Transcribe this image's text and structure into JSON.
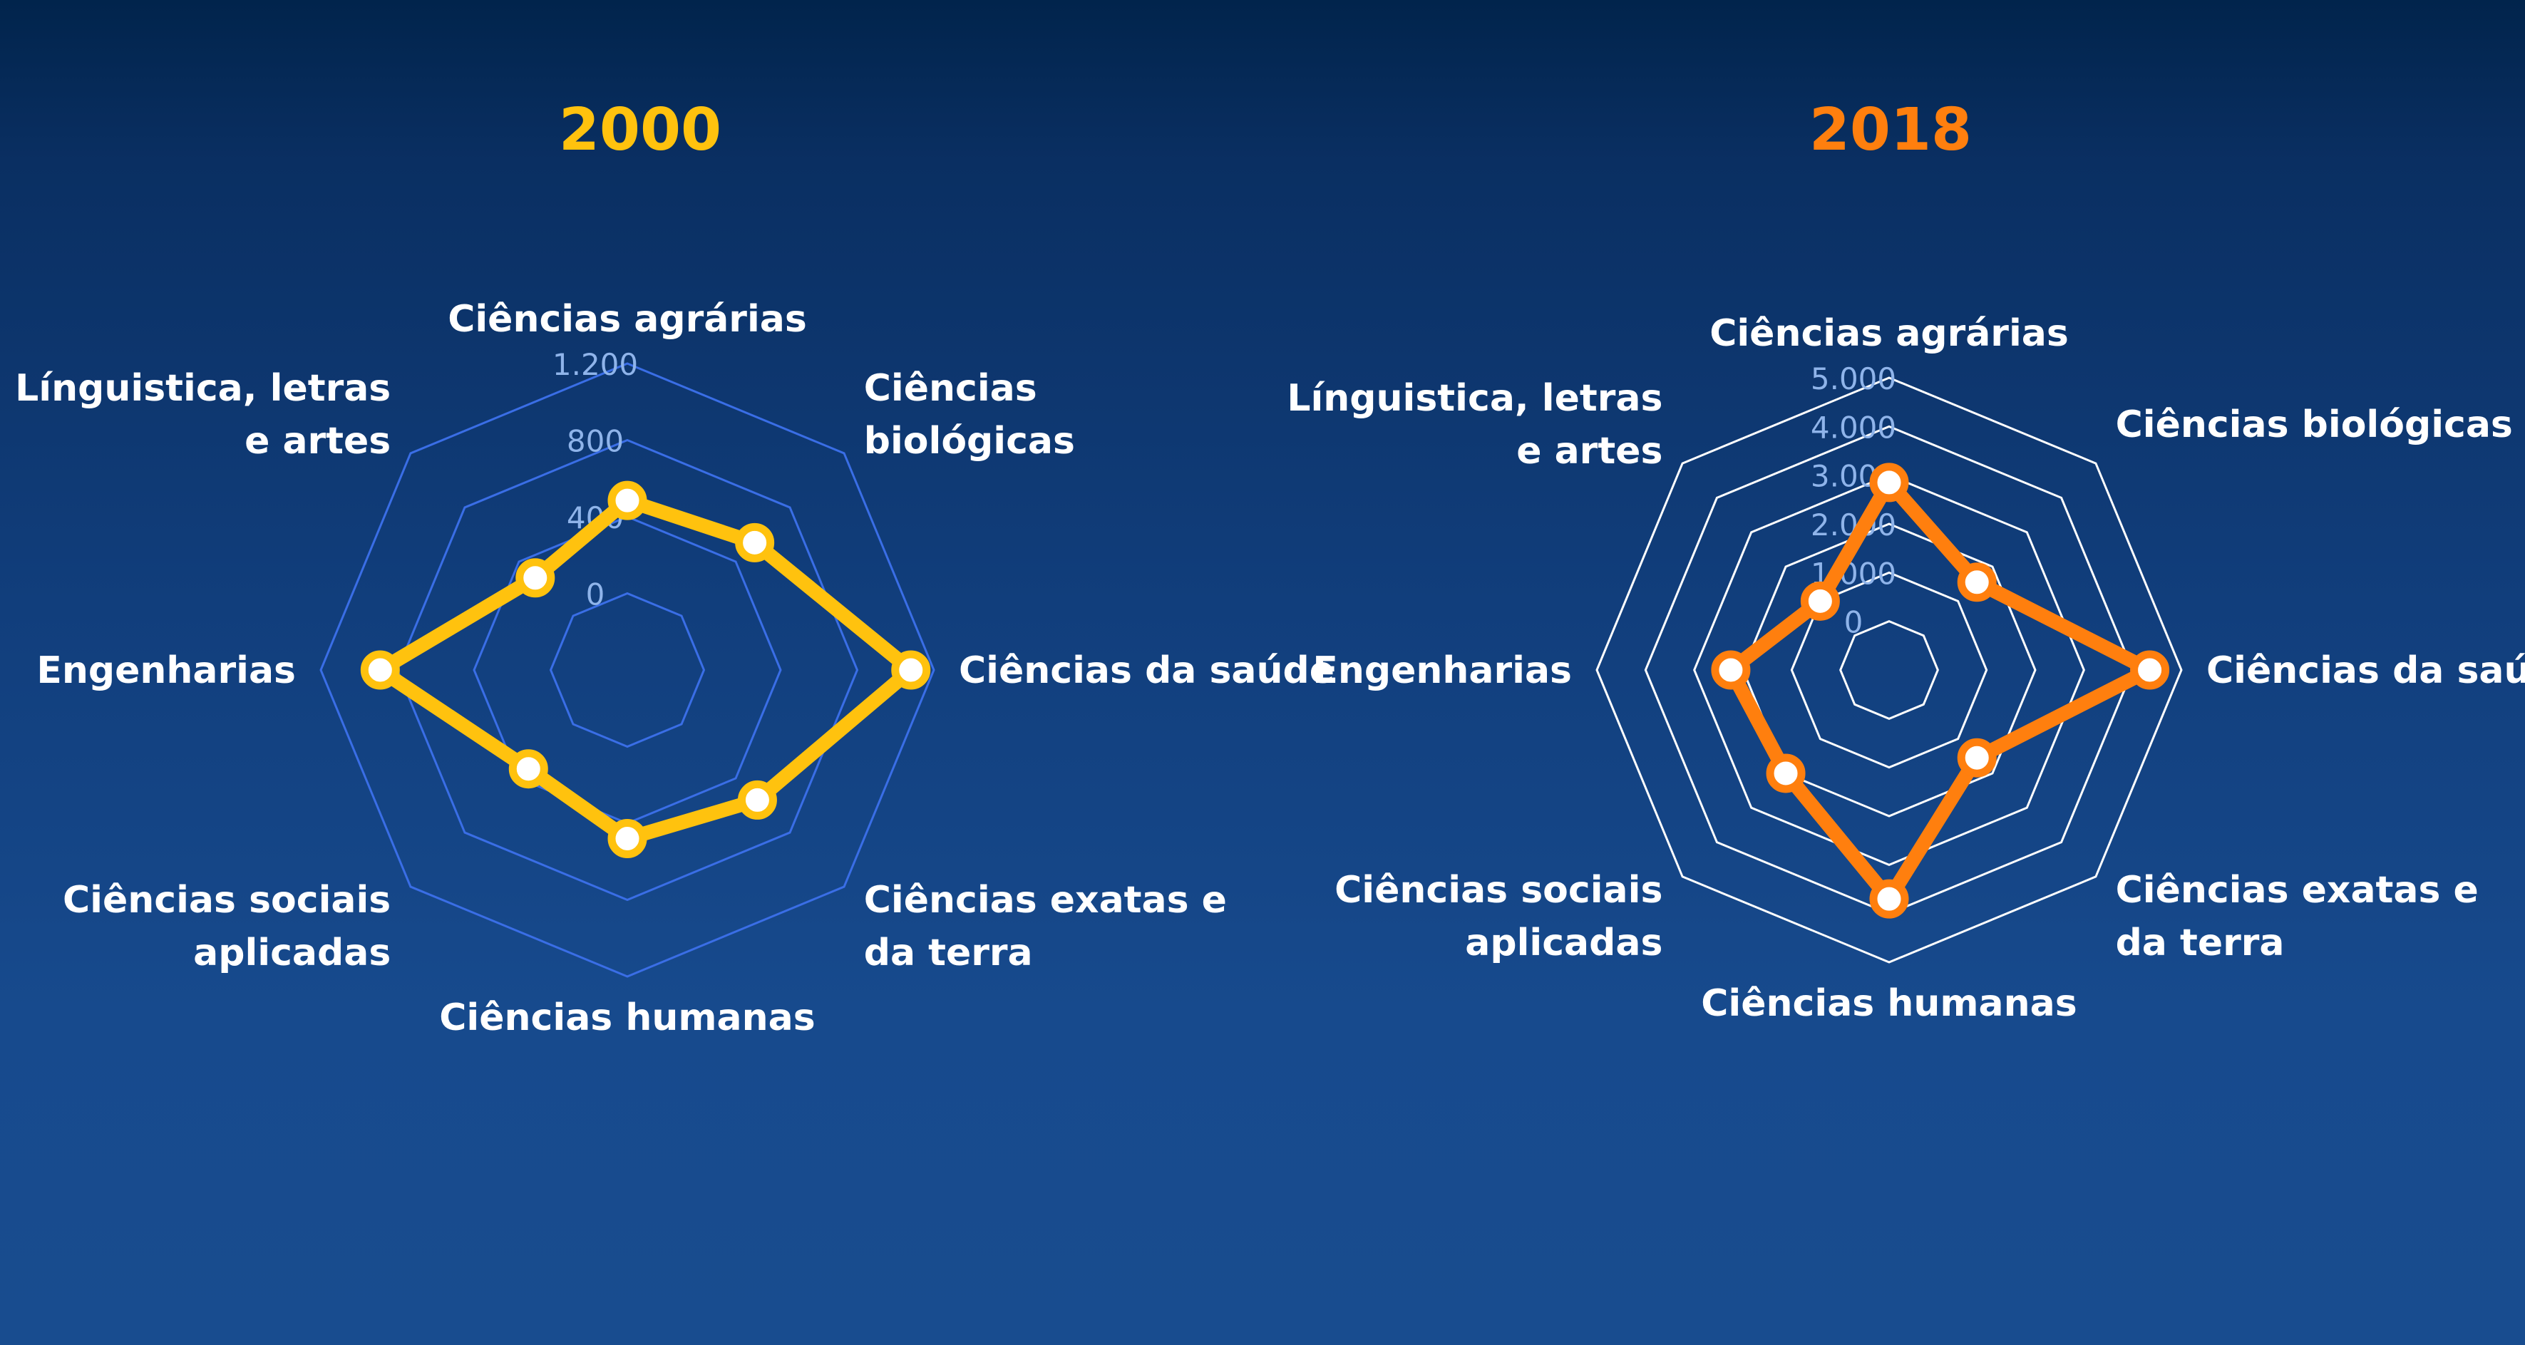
{
  "chart_data": [
    {
      "type": "radar",
      "title": "2000",
      "title_color": "#ffc20e",
      "line_color": "#ffc20e",
      "grid_color": "#3a6ee6",
      "tick_color": "#8fb4ea",
      "categories": [
        "Ciências agrárias",
        "Ciências biológicas",
        "Ciências da saúde",
        "Ciências exatas e da terra",
        "Ciências humanas",
        "Ciências sociais aplicadas",
        "Engenharias",
        "Línguistica, letras e artes"
      ],
      "category_lines": [
        [
          "Ciências agrárias"
        ],
        [
          "Ciências",
          "biológicas"
        ],
        [
          "Ciências da saúde"
        ],
        [
          "Ciências exatas e",
          "da terra"
        ],
        [
          "Ciências humanas"
        ],
        [
          "Ciências sociais",
          "aplicadas"
        ],
        [
          "Engenharias"
        ],
        [
          "Línguistica, letras",
          "e artes"
        ]
      ],
      "ticks": [
        "0",
        "400",
        "800",
        "1.200"
      ],
      "tick_values": [
        0,
        400,
        800,
        1200
      ],
      "rlim": [
        -400,
        1200
      ],
      "values": [
        485,
        540,
        1080,
        560,
        480,
        330,
        890,
        280
      ]
    },
    {
      "type": "radar",
      "title": "2018",
      "title_color": "#ff7f0e",
      "line_color": "#ff7f0e",
      "grid_color": "#ffffff",
      "tick_color": "#8fb4ea",
      "categories": [
        "Ciências agrárias",
        "Ciências biológicas",
        "Ciências da saúde",
        "Ciências exatas e da terra",
        "Ciências humanas",
        "Ciências sociais aplicadas",
        "Engenharias",
        "Línguistica, letras e artes"
      ],
      "category_lines": [
        [
          "Ciências agrárias"
        ],
        [
          "Ciências biológicas"
        ],
        [
          "Ciências da saúde"
        ],
        [
          "Ciências exatas e",
          "da terra"
        ],
        [
          "Ciências humanas"
        ],
        [
          "Ciências sociais",
          "aplicadas"
        ],
        [
          "Engenharias"
        ],
        [
          "Línguistica, letras",
          "e artes"
        ]
      ],
      "ticks": [
        "0",
        "1.000",
        "2.000",
        "3.000",
        "4.000",
        "5.000"
      ],
      "tick_values": [
        0,
        1000,
        2000,
        3000,
        4000,
        5000
      ],
      "rlim": [
        -1000,
        5000
      ],
      "values": [
        2850,
        1550,
        4350,
        1550,
        3700,
        2000,
        2250,
        1000
      ]
    }
  ]
}
